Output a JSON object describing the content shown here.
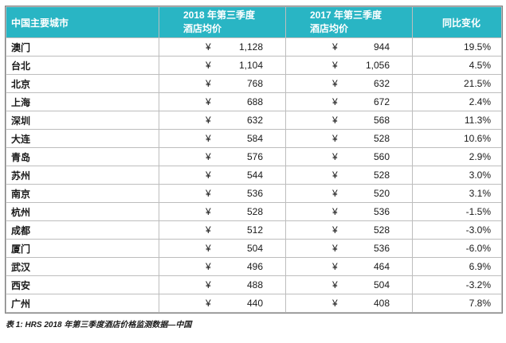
{
  "colors": {
    "header_bg": "#29b5c4",
    "header_text": "#ffffff",
    "body_text": "#1a1a1a"
  },
  "table": {
    "currency": "¥",
    "headers": {
      "city": "中国主要城市",
      "y2018_line1": "2018 年第三季度",
      "y2018_line2": "酒店均价",
      "y2017_line1": "2017 年第三季度",
      "y2017_line2": "酒店均价",
      "change": "同比变化"
    },
    "rows": [
      {
        "city": "澳门",
        "p2018": "1,128",
        "p2017": "944",
        "change": "19.5%"
      },
      {
        "city": "台北",
        "p2018": "1,104",
        "p2017": "1,056",
        "change": "4.5%"
      },
      {
        "city": "北京",
        "p2018": "768",
        "p2017": "632",
        "change": "21.5%"
      },
      {
        "city": "上海",
        "p2018": "688",
        "p2017": "672",
        "change": "2.4%"
      },
      {
        "city": "深圳",
        "p2018": "632",
        "p2017": "568",
        "change": "11.3%"
      },
      {
        "city": "大连",
        "p2018": "584",
        "p2017": "528",
        "change": "10.6%"
      },
      {
        "city": "青岛",
        "p2018": "576",
        "p2017": "560",
        "change": "2.9%"
      },
      {
        "city": "苏州",
        "p2018": "544",
        "p2017": "528",
        "change": "3.0%"
      },
      {
        "city": "南京",
        "p2018": "536",
        "p2017": "520",
        "change": "3.1%"
      },
      {
        "city": "杭州",
        "p2018": "528",
        "p2017": "536",
        "change": "-1.5%"
      },
      {
        "city": "成都",
        "p2018": "512",
        "p2017": "528",
        "change": "-3.0%"
      },
      {
        "city": "厦门",
        "p2018": "504",
        "p2017": "536",
        "change": "-6.0%"
      },
      {
        "city": "武汉",
        "p2018": "496",
        "p2017": "464",
        "change": "6.9%"
      },
      {
        "city": "西安",
        "p2018": "488",
        "p2017": "504",
        "change": "-3.2%"
      },
      {
        "city": "广州",
        "p2018": "440",
        "p2017": "408",
        "change": "7.8%"
      }
    ]
  },
  "caption": "表 1: HRS 2018 年第三季度酒店价格监测数据—中国"
}
